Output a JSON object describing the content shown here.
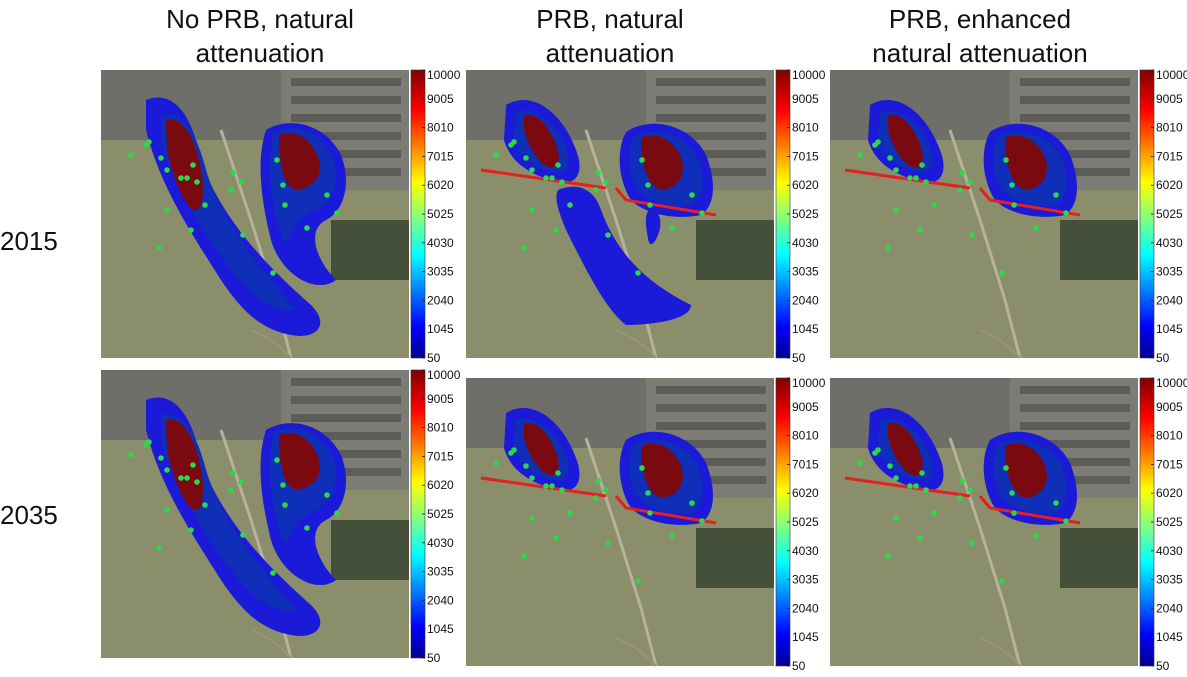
{
  "column_titles": [
    {
      "line1": "No PRB, natural",
      "line2": "attenuation"
    },
    {
      "line1": "PRB, natural",
      "line2": "attenuation"
    },
    {
      "line1": "PRB, enhanced",
      "line2": "natural attenuation"
    }
  ],
  "row_labels": [
    "2015",
    "2035"
  ],
  "colorbar": {
    "ticks": [
      "10000",
      "9005",
      "8010",
      "7015",
      "6020",
      "5025",
      "4030",
      "3035",
      "2040",
      "1045",
      "50"
    ],
    "range": [
      50,
      10000
    ],
    "colormap": "jet"
  },
  "colors": {
    "plume_outer": "#1a1ad8",
    "plume_inner": "#0f2fb8",
    "plume_core": "#7a0a10",
    "wells": "#2bd94a",
    "prb": "#e52020",
    "aerial_grass": "#8a8e6a",
    "aerial_buildings": "#6f6f6a"
  },
  "chart_data": {
    "type": "heatmap",
    "title": "",
    "panels": [
      {
        "row": "2015",
        "column": "No PRB, natural attenuation",
        "prb": false,
        "plumes": [
          "west",
          "east"
        ],
        "west_plume_extent": "long"
      },
      {
        "row": "2015",
        "column": "PRB, natural attenuation",
        "prb": true,
        "plumes": [
          "west",
          "east"
        ],
        "west_plume_extent": "detached-downgradient"
      },
      {
        "row": "2015",
        "column": "PRB, enhanced natural attenuation",
        "prb": true,
        "plumes": [
          "west",
          "east"
        ],
        "west_plume_extent": "contained"
      },
      {
        "row": "2035",
        "column": "No PRB, natural attenuation",
        "prb": false,
        "plumes": [
          "west",
          "east"
        ],
        "west_plume_extent": "long"
      },
      {
        "row": "2035",
        "column": "PRB, natural attenuation",
        "prb": true,
        "plumes": [
          "west",
          "east"
        ],
        "west_plume_extent": "contained"
      },
      {
        "row": "2035",
        "column": "PRB, enhanced natural attenuation",
        "prb": true,
        "plumes": [
          "west",
          "east"
        ],
        "west_plume_extent": "contained"
      }
    ],
    "colorbar_ticks": [
      10000,
      9005,
      8010,
      7015,
      6020,
      5025,
      4030,
      3035,
      2040,
      1045,
      50
    ]
  }
}
